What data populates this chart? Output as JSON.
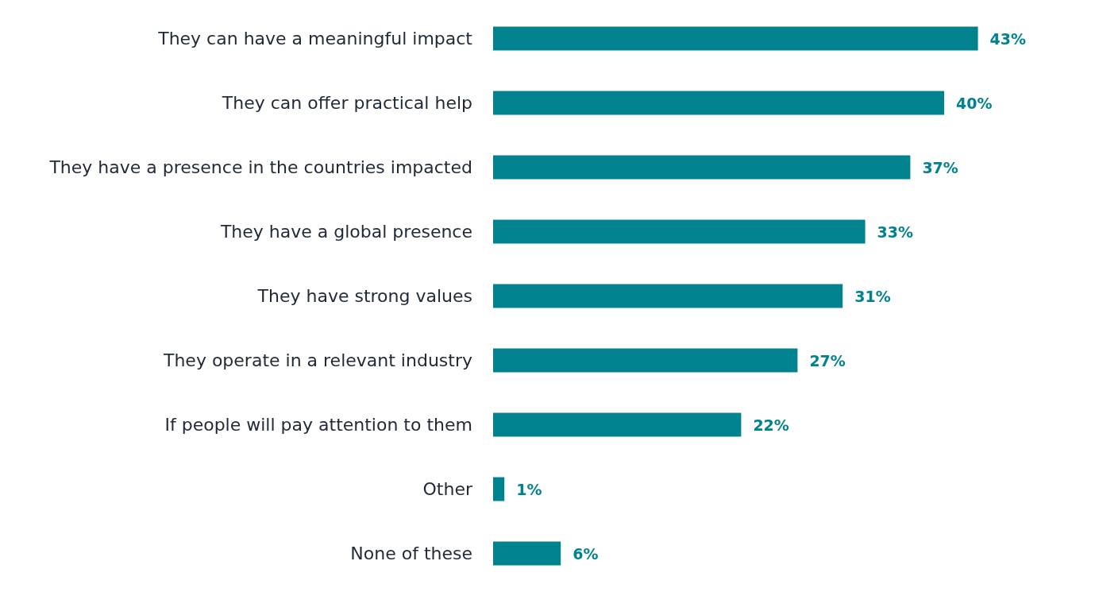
{
  "chart_data": {
    "type": "bar",
    "orientation": "horizontal",
    "categories": [
      "They can have a meaningful impact",
      "They can offer practical help",
      "They have a presence in the countries impacted",
      "They have a global presence",
      "They have strong values",
      "They operate in a relevant industry",
      "If people will pay attention to them",
      "Other",
      "None of these"
    ],
    "values": [
      43,
      40,
      37,
      33,
      31,
      27,
      22,
      1,
      6
    ],
    "value_labels": [
      "43%",
      "40%",
      "37%",
      "33%",
      "31%",
      "27%",
      "22%",
      "1%",
      "6%"
    ],
    "color": "#00838f"
  }
}
